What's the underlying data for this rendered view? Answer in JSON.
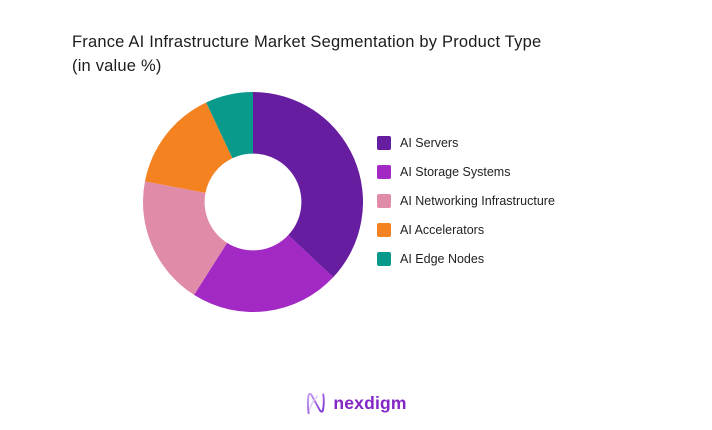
{
  "title": {
    "line1": "France AI Infrastructure Market Segmentation by Product Type",
    "line2": "(in value %)"
  },
  "chart_data": {
    "type": "pie",
    "subtype": "donut",
    "title": "France AI Infrastructure Market Segmentation by Product Type (in value %)",
    "categories": [
      "AI Servers",
      "AI Storage Systems",
      "AI Networking Infrastructure",
      "AI Accelerators",
      "AI Edge Nodes"
    ],
    "values": [
      37,
      22,
      19,
      15,
      7
    ],
    "unit": "value %",
    "colors": [
      "#671da0",
      "#a229c4",
      "#e08ca9",
      "#f58220",
      "#0a9a8c"
    ],
    "start_angle_deg": 0,
    "direction": "clockwise",
    "donut_hole_ratio": 0.44,
    "legend_position": "right",
    "data_labels_shown": false,
    "background": "#ffffff"
  },
  "logo": {
    "text": "nexdigm",
    "icon": "nexdigm-n-logo",
    "text_color": "#8326c6",
    "icon_gradient": [
      "#c9a4ef",
      "#7a2bd6"
    ]
  }
}
